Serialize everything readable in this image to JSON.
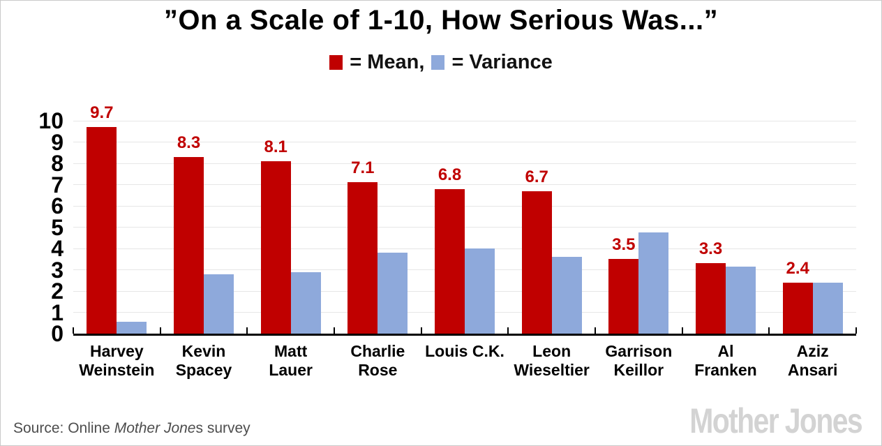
{
  "title": "”On a Scale of 1-10, How Serious Was...”",
  "legend": {
    "mean_label": "= Mean,",
    "variance_label": "= Variance"
  },
  "colors": {
    "mean": "#C00000",
    "variance": "#8EA9DB",
    "grid": "#E6E6E6",
    "axis": "#000000",
    "value_label": "#C00000",
    "source_text": "#4D4D4D",
    "logo": "#D3D3D3",
    "page_border": "#C9C9C9"
  },
  "source": {
    "prefix": "Source: Online ",
    "italic": "Mother Jone",
    "suffix": "s survey"
  },
  "logo_text": "Mother Jones",
  "chart_data": {
    "type": "bar",
    "title": "”On a Scale of 1-10, How Serious Was...”",
    "categories": [
      "Harvey Weinstein",
      "Kevin Spacey",
      "Matt Lauer",
      "Charlie Rose",
      "Louis C.K.",
      "Leon Wieseltier",
      "Garrison Keillor",
      "Al Franken",
      "Aziz Ansari"
    ],
    "category_label_lines": [
      [
        "Harvey",
        "Weinstein"
      ],
      [
        "Kevin",
        "Spacey"
      ],
      [
        "Matt",
        "Lauer"
      ],
      [
        "Charlie",
        "Rose"
      ],
      [
        "Louis C.K."
      ],
      [
        "Leon",
        "Wieseltier"
      ],
      [
        "Garrison",
        "Keillor"
      ],
      [
        "Al",
        "Franken"
      ],
      [
        "Aziz",
        "Ansari"
      ]
    ],
    "series": [
      {
        "name": "Mean",
        "color": "#C00000",
        "values": [
          9.7,
          8.3,
          8.1,
          7.1,
          6.8,
          6.7,
          3.5,
          3.3,
          2.4
        ],
        "value_labels": [
          "9.7",
          "8.3",
          "8.1",
          "7.1",
          "6.8",
          "6.7",
          "3.5",
          "3.3",
          "2.4"
        ]
      },
      {
        "name": "Variance",
        "color": "#8EA9DB",
        "values": [
          0.55,
          2.8,
          2.9,
          3.8,
          4.0,
          3.6,
          4.75,
          3.15,
          2.4
        ]
      }
    ],
    "xlabel": "",
    "ylabel": "",
    "ylim": [
      0,
      10
    ],
    "yticks": [
      0,
      1,
      2,
      3,
      4,
      5,
      6,
      7,
      8,
      9,
      10
    ],
    "grid": true,
    "legend_position": "top-center"
  }
}
